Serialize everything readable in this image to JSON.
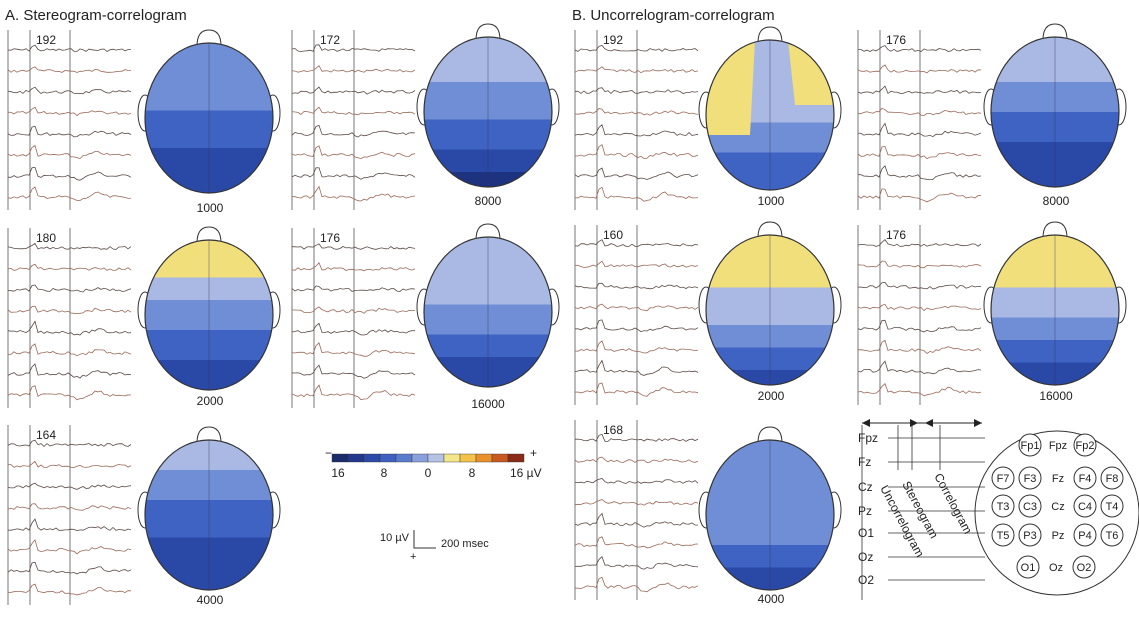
{
  "panel_a": {
    "title": "A. Stereogram-correlogram",
    "blocks": [
      {
        "trace_label": 192,
        "map_label": 1000
      },
      {
        "trace_label": 172,
        "map_label": 8000
      },
      {
        "trace_label": 180,
        "map_label": 2000
      },
      {
        "trace_label": 176,
        "map_label": 16000
      },
      {
        "trace_label": 164,
        "map_label": 4000
      }
    ]
  },
  "panel_b": {
    "title": "B. Uncorrelogram-correlogram",
    "blocks": [
      {
        "trace_label": 192,
        "map_label": 1000
      },
      {
        "trace_label": 176,
        "map_label": 8000
      },
      {
        "trace_label": 160,
        "map_label": 2000
      },
      {
        "trace_label": 176,
        "map_label": 16000
      },
      {
        "trace_label": 168,
        "map_label": 4000
      }
    ]
  },
  "color_scale": {
    "minus": "−",
    "plus": "+",
    "ticks": [
      "16",
      "8",
      "0",
      "8",
      "16 µV"
    ]
  },
  "scale_bar": {
    "amplitude": "10 µV",
    "time": "200 msec",
    "polarity": "+"
  },
  "electrode_diagram": {
    "left_labels": [
      "Fpz",
      "Fz",
      "Cz",
      "Pz",
      "O1",
      "Oz",
      "O2"
    ],
    "conditions": [
      "Uncorrelogram",
      "Stereogram",
      "Correlogram"
    ],
    "electrodes": [
      "Fp1",
      "Fpz",
      "Fp2",
      "F7",
      "F3",
      "Fz",
      "F4",
      "F8",
      "T3",
      "C3",
      "Cz",
      "C4",
      "T4",
      "T5",
      "P3",
      "Pz",
      "P4",
      "T6",
      "O1",
      "Oz",
      "O2"
    ]
  }
}
